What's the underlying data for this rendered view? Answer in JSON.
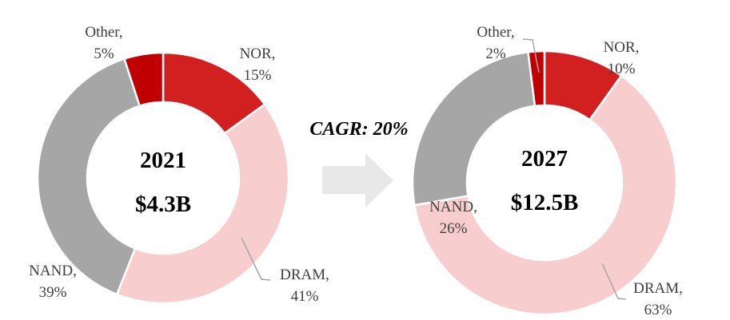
{
  "cagr": {
    "label": "CAGR: 20%"
  },
  "arrow": {
    "direction": "right",
    "color": "#E8E8E8"
  },
  "palette": {
    "nor_red": "#D21F1F",
    "dram_pink": "#F7CDCE",
    "nand_gray": "#A6A6A6",
    "other_dark_red": "#C00000",
    "label_text": "#3F3F3F",
    "leader_line": "#A6A6A6",
    "center_text": "#000000"
  },
  "chart_data": [
    {
      "type": "pie",
      "subtype": "donut",
      "title": "2021",
      "center_value": "$4.3B",
      "categories": [
        "NOR",
        "DRAM",
        "NAND",
        "Other"
      ],
      "values": [
        15,
        41,
        39,
        5
      ],
      "unit": "%",
      "colors": [
        "#D21F1F",
        "#F7CDCE",
        "#A6A6A6",
        "#C00000"
      ],
      "start_angle_deg": 0,
      "direction": "clockwise",
      "labels_position": "outside",
      "labels": [
        {
          "line1": "NOR,",
          "line2": "15%"
        },
        {
          "line1": "DRAM,",
          "line2": "41%"
        },
        {
          "line1": "NAND,",
          "line2": "39%"
        },
        {
          "line1": "Other,",
          "line2": "5%"
        }
      ]
    },
    {
      "type": "pie",
      "subtype": "donut",
      "title": "2027",
      "center_value": "$12.5B",
      "categories": [
        "NOR",
        "DRAM",
        "NAND",
        "Other"
      ],
      "values": [
        10,
        63,
        26,
        2
      ],
      "unit": "%",
      "colors": [
        "#D21F1F",
        "#F7CDCE",
        "#A6A6A6",
        "#C00000"
      ],
      "start_angle_deg": 0,
      "direction": "clockwise",
      "labels_position": "outside",
      "labels": [
        {
          "line1": "NOR,",
          "line2": "10%"
        },
        {
          "line1": "DRAM,",
          "line2": "63%"
        },
        {
          "line1": "NAND,",
          "line2": "26%"
        },
        {
          "line1": "Other,",
          "line2": "2%"
        }
      ]
    }
  ]
}
